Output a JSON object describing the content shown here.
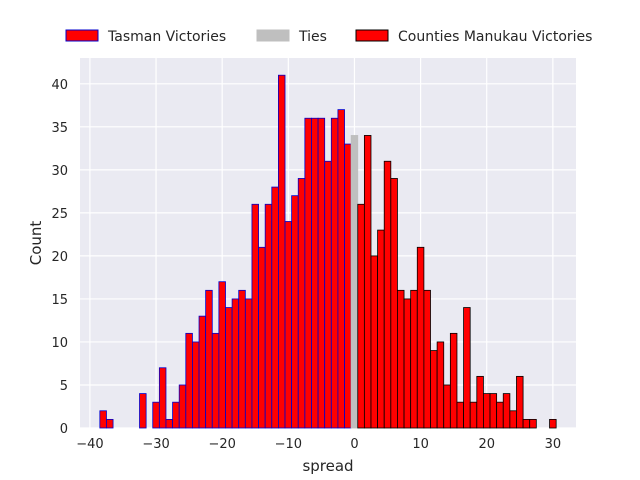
{
  "chart_data": {
    "type": "bar",
    "xlabel": "spread",
    "ylabel": "Count",
    "xlim": [
      -41.5,
      33.5
    ],
    "ylim": [
      0,
      43
    ],
    "x_ticks": [
      -40,
      -30,
      -20,
      -10,
      0,
      10,
      20,
      30
    ],
    "y_ticks": [
      0,
      5,
      10,
      15,
      20,
      25,
      30,
      35,
      40
    ],
    "grid": true,
    "legend_position": "top",
    "background": "#EAEAF2",
    "series": [
      {
        "name": "Tasman Victories",
        "color": "#FF0000",
        "edgecolor": "#0000CC",
        "x": [
          -38,
          -37,
          -32,
          -30,
          -29,
          -28,
          -27,
          -26,
          -25,
          -24,
          -23,
          -22,
          -21,
          -20,
          -19,
          -18,
          -17,
          -16,
          -15,
          -14,
          -13,
          -12,
          -11,
          -10,
          -9,
          -8,
          -7,
          -6,
          -5,
          -4,
          -3,
          -2,
          -1
        ],
        "values": [
          2,
          1,
          4,
          3,
          7,
          1,
          3,
          5,
          11,
          10,
          13,
          16,
          11,
          17,
          14,
          15,
          16,
          15,
          26,
          21,
          26,
          28,
          41,
          24,
          27,
          29,
          36,
          36,
          36,
          31,
          36,
          37,
          33
        ]
      },
      {
        "name": "Ties",
        "color": "#BFBFBF",
        "edgecolor": "#BFBFBF",
        "x": [
          0
        ],
        "values": [
          34
        ]
      },
      {
        "name": "Counties Manukau Victories",
        "color": "#FF0000",
        "edgecolor": "#000000",
        "x": [
          1,
          2,
          3,
          4,
          5,
          6,
          7,
          8,
          9,
          10,
          11,
          12,
          13,
          14,
          15,
          16,
          17,
          18,
          19,
          20,
          21,
          22,
          23,
          24,
          25,
          26,
          27,
          30
        ],
        "values": [
          26,
          34,
          20,
          23,
          31,
          29,
          16,
          15,
          16,
          21,
          16,
          9,
          10,
          5,
          11,
          3,
          14,
          3,
          6,
          4,
          4,
          3,
          4,
          2,
          6,
          1,
          1,
          1
        ]
      }
    ]
  }
}
